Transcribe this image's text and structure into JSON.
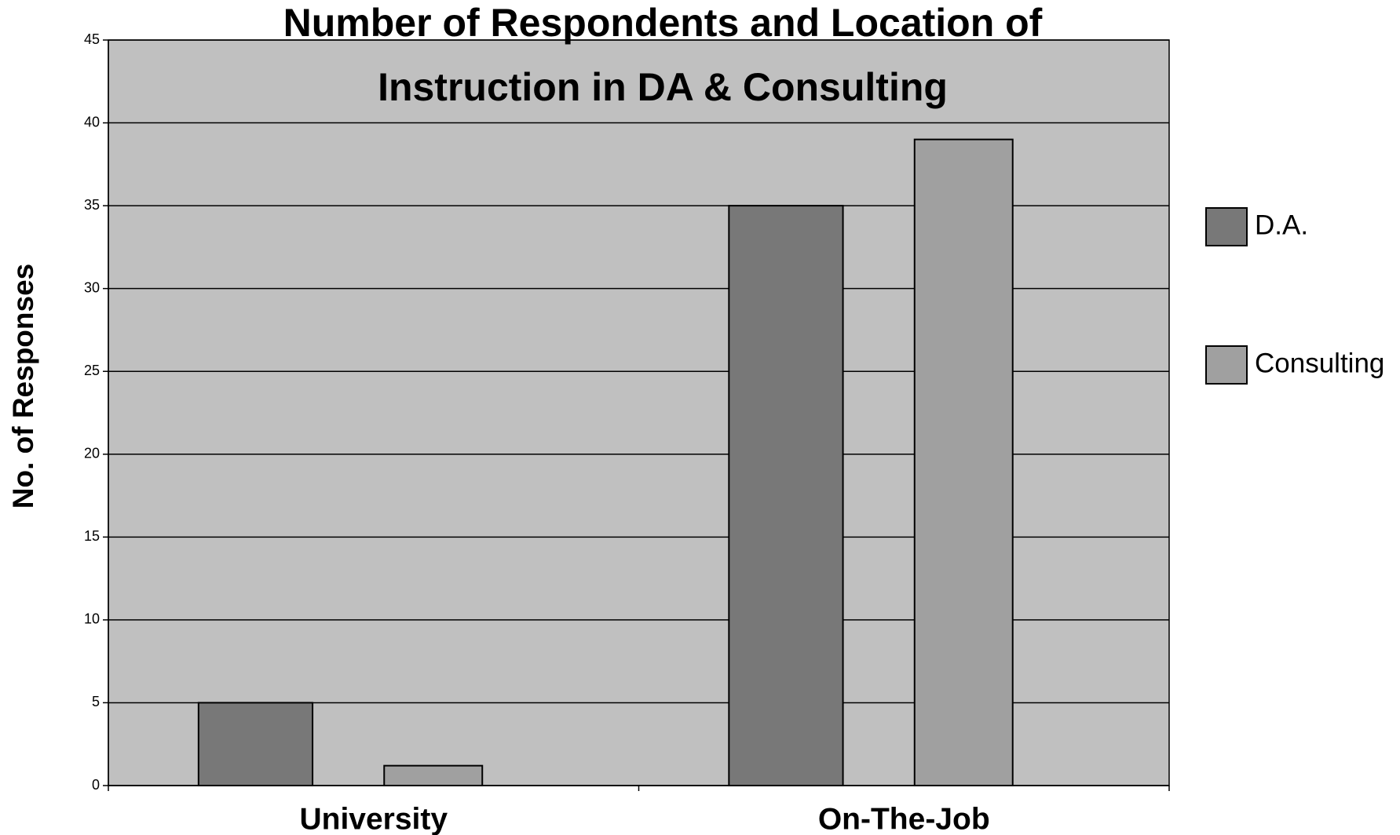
{
  "chart_data": {
    "type": "bar",
    "title": [
      "Number of Respondents and Location of",
      "Instruction in DA & Consulting"
    ],
    "y_label": "No. of Responses",
    "categories": [
      "University",
      "On-The-Job"
    ],
    "series": [
      {
        "name": "D.A.",
        "color": "#787878",
        "values": [
          5,
          35
        ]
      },
      {
        "name": "Consulting",
        "color": "#a0a0a0",
        "values": [
          1.2,
          39
        ]
      }
    ],
    "ylim": [
      0,
      45
    ],
    "yticks": [
      0,
      5,
      10,
      15,
      20,
      25,
      30,
      35,
      40,
      45
    ],
    "grid": true,
    "legend": "right",
    "background": "#c0c0c0"
  }
}
